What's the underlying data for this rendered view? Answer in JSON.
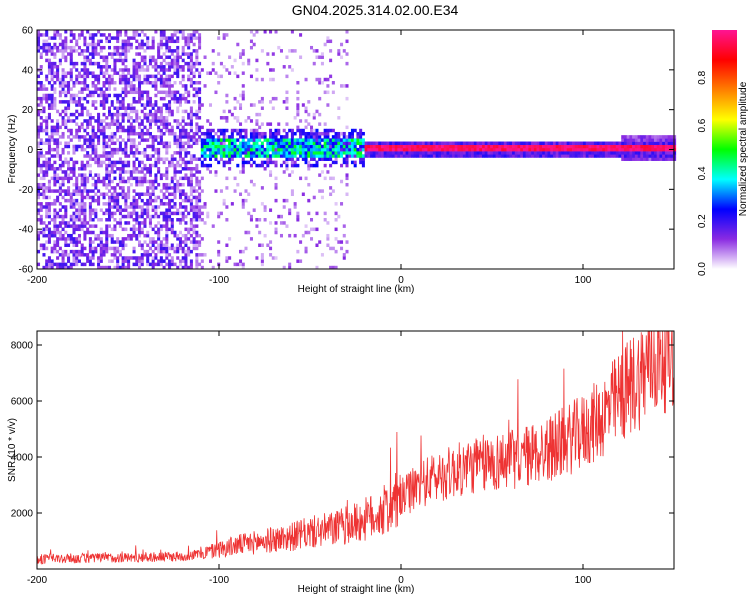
{
  "title": "GN04.2025.314.02.00.E34",
  "chart_data": [
    {
      "type": "heatmap",
      "xlabel": "Height of straight line (km)",
      "ylabel": "Frequency (Hz)",
      "xlim": [
        -200,
        150
      ],
      "ylim": [
        -60,
        60
      ],
      "x_ticks": [
        "-200",
        "-100",
        "0",
        "100"
      ],
      "y_ticks": [
        "-60",
        "-40",
        "-20",
        "0",
        "20",
        "40",
        "60"
      ],
      "colorbar": {
        "label": "Normalized spectral amplitude",
        "range": [
          0,
          1
        ],
        "ticks": [
          "0.0",
          "0.2",
          "0.4",
          "0.6",
          "0.8"
        ],
        "colormap": [
          "#ffffff",
          "#8a2be2",
          "#0000ff",
          "#00ffff",
          "#00ff00",
          "#ffff00",
          "#ff7f00",
          "#ff0000",
          "#ff1493"
        ]
      },
      "regions": [
        {
          "x_range": [
            -200,
            -110
          ],
          "freq_range": [
            -60,
            60
          ],
          "level": "0.1-0.2",
          "pattern": "dense noise"
        },
        {
          "x_range": [
            -110,
            -30
          ],
          "freq_range": [
            -60,
            60
          ],
          "level": "< 0.1",
          "pattern": "sparse noise"
        },
        {
          "x_range": [
            -110,
            -20
          ],
          "freq_range": [
            -5,
            5
          ],
          "level": "0.3-0.5",
          "pattern": "broad band near 0 Hz"
        },
        {
          "x_range": [
            -20,
            150
          ],
          "freq_range": [
            -2,
            2
          ],
          "level": "0.9-1.0",
          "pattern": "narrow line at 0 Hz"
        }
      ]
    },
    {
      "type": "line",
      "xlabel": "Height of straight line (km)",
      "ylabel": "SNR (10 * v/v)",
      "xlim": [
        -200,
        150
      ],
      "ylim": [
        0,
        8500
      ],
      "x_ticks": [
        "-200",
        "-100",
        "0",
        "100"
      ],
      "y_ticks": [
        "2000",
        "4000",
        "6000",
        "8000"
      ],
      "color": "#ee3333",
      "series": [
        {
          "x": [
            -200,
            -180,
            -160,
            -140,
            -120,
            -110,
            -100,
            -90,
            -80,
            -70,
            -60,
            -50,
            -40,
            -30,
            -20,
            -10,
            0,
            10,
            20,
            30,
            40,
            50,
            60,
            70,
            80,
            90,
            100,
            110,
            120,
            130,
            140,
            150
          ],
          "y": [
            350,
            380,
            400,
            420,
            450,
            550,
            700,
            850,
            950,
            1050,
            1150,
            1300,
            1400,
            1550,
            1750,
            2050,
            2500,
            3000,
            3300,
            3500,
            3700,
            3800,
            3900,
            4050,
            4250,
            4550,
            4900,
            5400,
            6100,
            6800,
            7500,
            7900
          ]
        }
      ]
    }
  ]
}
